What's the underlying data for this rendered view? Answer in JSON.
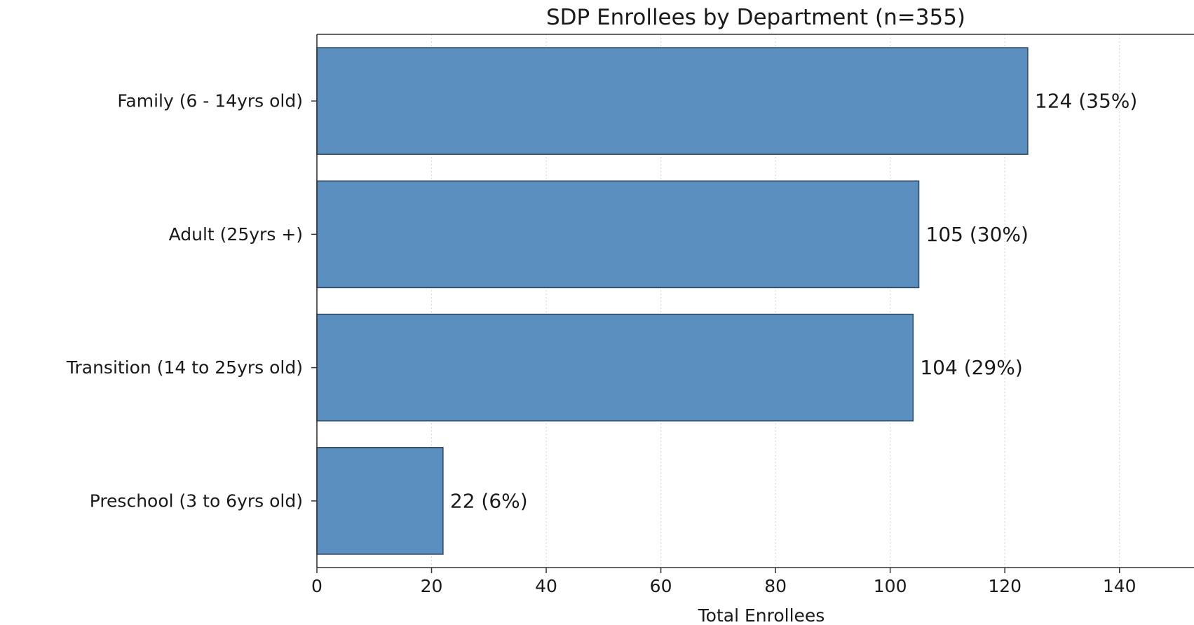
{
  "chart_data": {
    "type": "bar",
    "orientation": "horizontal",
    "title": "SDP Enrollees by Department (n=355)",
    "xlabel": "Total Enrollees",
    "ylabel": "",
    "categories": [
      "Family (6 - 14yrs old)",
      "Adult (25yrs +)",
      "Transition (14 to 25yrs old)",
      "Preschool (3 to 6yrs old)"
    ],
    "values": [
      124,
      105,
      104,
      22
    ],
    "data_labels": [
      "124 (35%)",
      "105 (30%)",
      "104 (29%)",
      "22 (6%)"
    ],
    "xlim": [
      0,
      153
    ],
    "xticks": [
      0,
      20,
      40,
      60,
      80,
      100,
      120,
      140
    ],
    "xtick_labels": [
      "0",
      "20",
      "40",
      "60",
      "80",
      "100",
      "120",
      "140"
    ],
    "grid": "vertical dotted",
    "legend": "none",
    "colors": {
      "bar_fill": "#5b8fc0",
      "bar_edge": "#2f4a63",
      "axis": "#333333",
      "grid": "#d9d9d9",
      "text": "#1a1a1a"
    }
  }
}
